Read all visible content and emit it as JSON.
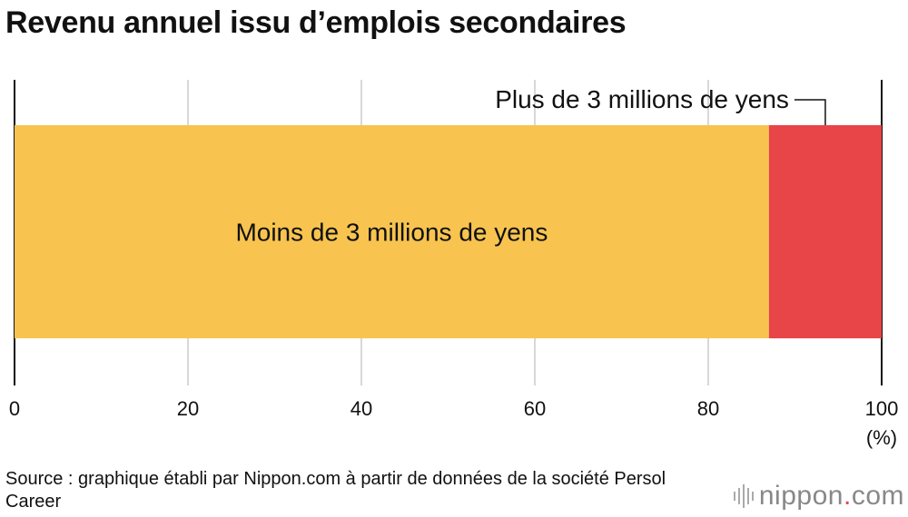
{
  "title": "Revenu annuel issu d’emplois secondaires",
  "chart_data": {
    "type": "bar",
    "orientation": "horizontal-stacked",
    "series": [
      {
        "name": "Moins de 3 millions de yens",
        "values": [
          87
        ],
        "color": "#f8c44f"
      },
      {
        "name": "Plus de 3 millions de yens",
        "values": [
          13
        ],
        "color": "#e84548"
      }
    ],
    "xlim": [
      0,
      100
    ],
    "xticks": [
      "0",
      "20",
      "40",
      "60",
      "80",
      "100"
    ],
    "xunit": "(%)",
    "grid": true
  },
  "source": "Source : graphique établi par Nippon.com à partir de données de la société Persol Career",
  "logo": {
    "name": "nippon",
    "dot": ".",
    "tld": "com"
  }
}
